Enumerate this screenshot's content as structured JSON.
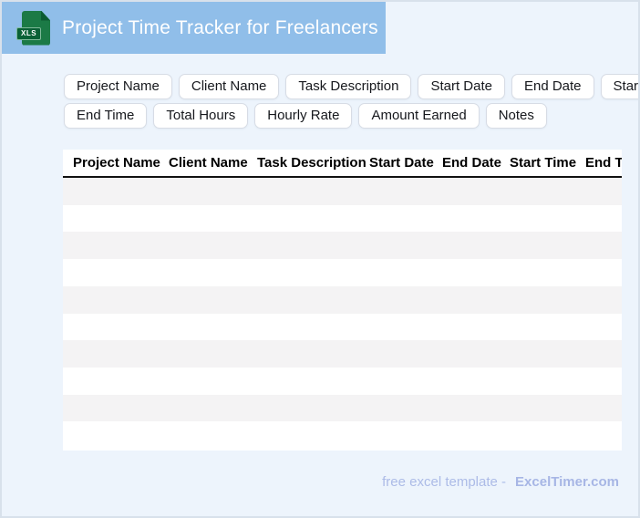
{
  "header": {
    "title": "Project Time Tracker for Freelancers",
    "file_badge": "XLS"
  },
  "chips": {
    "row1": [
      {
        "label": "Project Name"
      },
      {
        "label": "Client Name"
      },
      {
        "label": "Task Description"
      },
      {
        "label": "Start Date"
      },
      {
        "label": "End Date"
      },
      {
        "label": "Start Time"
      }
    ],
    "row2": [
      {
        "label": "End Time"
      },
      {
        "label": "Total Hours"
      },
      {
        "label": "Hourly Rate"
      },
      {
        "label": "Amount Earned"
      },
      {
        "label": "Notes"
      }
    ]
  },
  "table": {
    "columns": [
      "Project Name",
      "Client Name",
      "Task Description",
      "Start Date",
      "End Date",
      "Start Time",
      "End Time"
    ],
    "row_count": 10,
    "rows_are_empty": true
  },
  "footer": {
    "text": "free excel template -",
    "brand": "ExcelTimer.com"
  },
  "colors": {
    "header_bg": "#90BEE9",
    "page_bg": "#EDF4FC",
    "icon_green": "#1B7A46",
    "row_stripe": "#F4F3F4",
    "table_header_rule": "#111111",
    "footer_text": "#ACBBE7"
  }
}
